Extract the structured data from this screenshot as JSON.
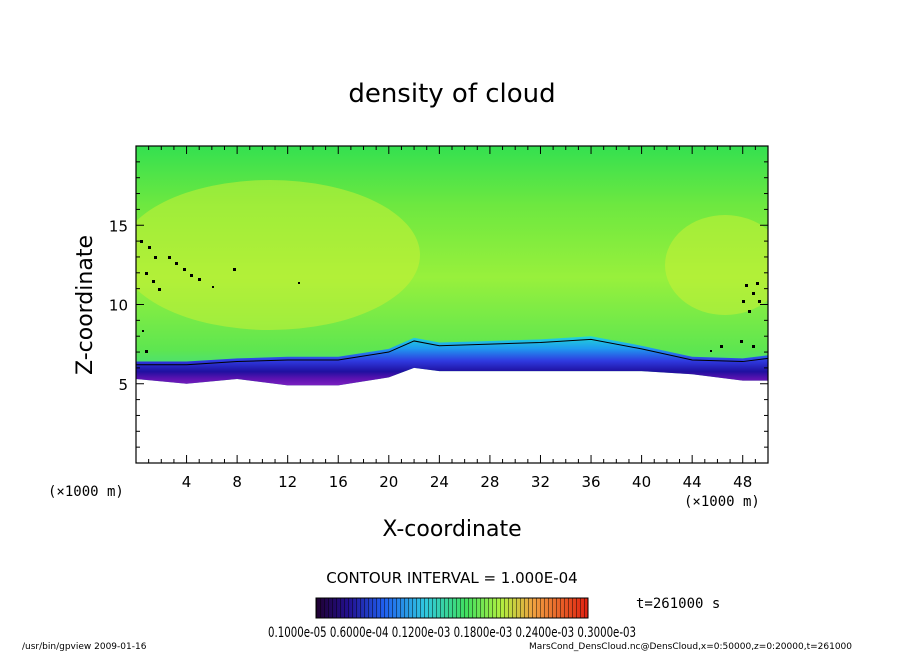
{
  "chart_data": {
    "type": "heatmap",
    "title": "density of cloud",
    "xlabel": "X-coordinate",
    "ylabel": "Z-coordinate",
    "x_unit": "(×1000 m)",
    "y_unit": "(×1000 m)",
    "xlim": [
      0,
      50
    ],
    "ylim": [
      0,
      20
    ],
    "x_ticks": [
      4,
      8,
      12,
      16,
      20,
      24,
      28,
      32,
      36,
      40,
      44,
      48
    ],
    "y_ticks": [
      5,
      10,
      15
    ],
    "cloud_base_z": [
      [
        0,
        5.3
      ],
      [
        4,
        5.0
      ],
      [
        8,
        5.3
      ],
      [
        12,
        4.9
      ],
      [
        16,
        4.9
      ],
      [
        20,
        5.4
      ],
      [
        22,
        6.0
      ],
      [
        24,
        5.8
      ],
      [
        28,
        5.8
      ],
      [
        32,
        5.8
      ],
      [
        36,
        5.8
      ],
      [
        40,
        5.8
      ],
      [
        44,
        5.6
      ],
      [
        48,
        5.2
      ],
      [
        50,
        5.2
      ]
    ],
    "contour_line_z": [
      [
        0,
        6.2
      ],
      [
        4,
        6.2
      ],
      [
        8,
        6.4
      ],
      [
        12,
        6.5
      ],
      [
        16,
        6.5
      ],
      [
        20,
        7.0
      ],
      [
        22,
        7.7
      ],
      [
        24,
        7.4
      ],
      [
        28,
        7.5
      ],
      [
        32,
        7.6
      ],
      [
        36,
        7.8
      ],
      [
        40,
        7.2
      ],
      [
        44,
        6.5
      ],
      [
        48,
        6.4
      ],
      [
        50,
        6.6
      ]
    ],
    "colorbar_labels": "0.1000e-05 0.6000e-04 0.1200e-03 0.1800e-03 0.2400e-03 0.3000e-03",
    "contour_interval": "CONTOUR INTERVAL = 1.000E-04"
  },
  "time_label": "t=261000 s",
  "footer_left": "/usr/bin/gpview  2009-01-16",
  "footer_right": "MarsCond_DensCloud.nc@DensCloud,x=0:50000,z=0:20000,t=261000",
  "colors": {
    "field_top": "#46e05a",
    "field_mid": "#b4f03a",
    "cloud_base": "#7a1fbf"
  }
}
